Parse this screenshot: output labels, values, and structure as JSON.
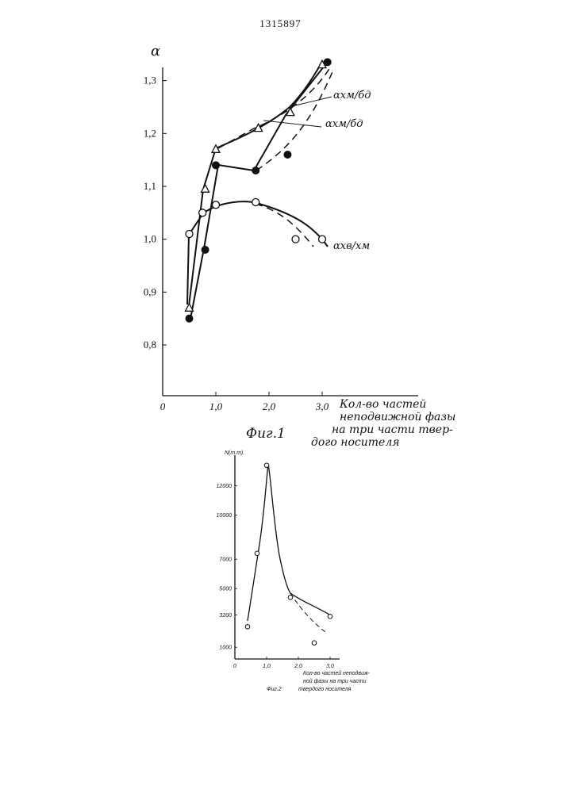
{
  "document": {
    "number": "1315897"
  },
  "chart_data": [
    {
      "type": "line",
      "caption": "Фиг.1",
      "xlabel_lines": [
        "Кол-во частей",
        "неподвижной фазы",
        "на три части твер-",
        "дого носителя"
      ],
      "ylabel": "α",
      "x_ticks": [
        "0",
        "1,0",
        "2,0",
        "3,0"
      ],
      "y_ticks": [
        "0,8",
        "0,9",
        "1,0",
        "1,1",
        "1,2",
        "1,3"
      ],
      "xlim": [
        0,
        3.2
      ],
      "ylim": [
        0.7,
        1.38
      ],
      "series": [
        {
          "name": "αхм/бд",
          "marker": "triangle",
          "points": [
            [
              0.5,
              0.87
            ],
            [
              0.8,
              1.095
            ],
            [
              1.0,
              1.17
            ],
            [
              1.8,
              1.21
            ],
            [
              2.4,
              1.24
            ],
            [
              3.0,
              1.33
            ]
          ]
        },
        {
          "name": "αхм/бд",
          "marker": "filled-circle",
          "points": [
            [
              0.5,
              0.85
            ],
            [
              0.8,
              0.98
            ],
            [
              1.0,
              1.14
            ],
            [
              1.75,
              1.13
            ],
            [
              2.35,
              1.16
            ],
            [
              3.1,
              1.335
            ]
          ]
        },
        {
          "name": "αхв/хм",
          "marker": "open-circle",
          "points": [
            [
              0.5,
              1.01
            ],
            [
              0.75,
              1.05
            ],
            [
              1.0,
              1.065
            ],
            [
              1.75,
              1.07
            ],
            [
              2.5,
              1.0
            ],
            [
              3.0,
              1.0
            ]
          ]
        }
      ]
    },
    {
      "type": "line",
      "caption": "Фиг.2",
      "xlabel_lines": [
        "Кол-во частей неподвиж-",
        "ной фазы на три части",
        "твердого носителя"
      ],
      "ylabel": "N(т.т).",
      "x_ticks": [
        "0",
        "1,0",
        "2,0",
        "3,0"
      ],
      "y_ticks": [
        "1000",
        "3200",
        "5000",
        "7000",
        "10000",
        "12000"
      ],
      "xlim": [
        0,
        3.2
      ],
      "series": [
        {
          "name": "",
          "marker": "open-circle",
          "points": [
            [
              0.4,
              2400
            ],
            [
              0.7,
              7400
            ],
            [
              1.0,
              13400
            ],
            [
              1.75,
              4400
            ],
            [
              2.5,
              1300
            ],
            [
              3.0,
              3100
            ]
          ]
        }
      ]
    }
  ]
}
